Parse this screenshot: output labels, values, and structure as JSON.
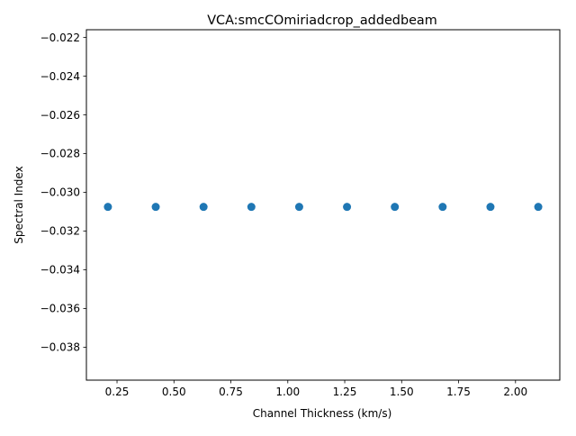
{
  "chart_data": {
    "type": "scatter",
    "title": "VCA:smcCOmiriadcrop_addedbeam",
    "xlabel": "Channel Thickness (km/s)",
    "ylabel": "Spectral Index",
    "x": [
      0.21,
      0.42,
      0.63,
      0.84,
      1.05,
      1.26,
      1.47,
      1.68,
      1.89,
      2.1
    ],
    "y": [
      -0.03075,
      -0.03075,
      -0.03075,
      -0.03075,
      -0.03075,
      -0.03075,
      -0.03075,
      -0.03075,
      -0.03075,
      -0.03075
    ],
    "xlim": [
      0.1155,
      2.1945
    ],
    "ylim": [
      -0.0397,
      -0.0216
    ],
    "xticks": [
      0.25,
      0.5,
      0.75,
      1.0,
      1.25,
      1.5,
      1.75,
      2.0
    ],
    "xtick_labels": [
      "0.25",
      "0.50",
      "0.75",
      "1.00",
      "1.25",
      "1.50",
      "1.75",
      "2.00"
    ],
    "yticks": [
      -0.022,
      -0.024,
      -0.026,
      -0.028,
      -0.03,
      -0.032,
      -0.034,
      -0.036,
      -0.038
    ],
    "ytick_labels": [
      "−0.022",
      "−0.024",
      "−0.026",
      "−0.028",
      "−0.030",
      "−0.032",
      "−0.034",
      "−0.036",
      "−0.038"
    ],
    "marker_color": "#1f77b4",
    "grid": false,
    "legend": "none"
  }
}
